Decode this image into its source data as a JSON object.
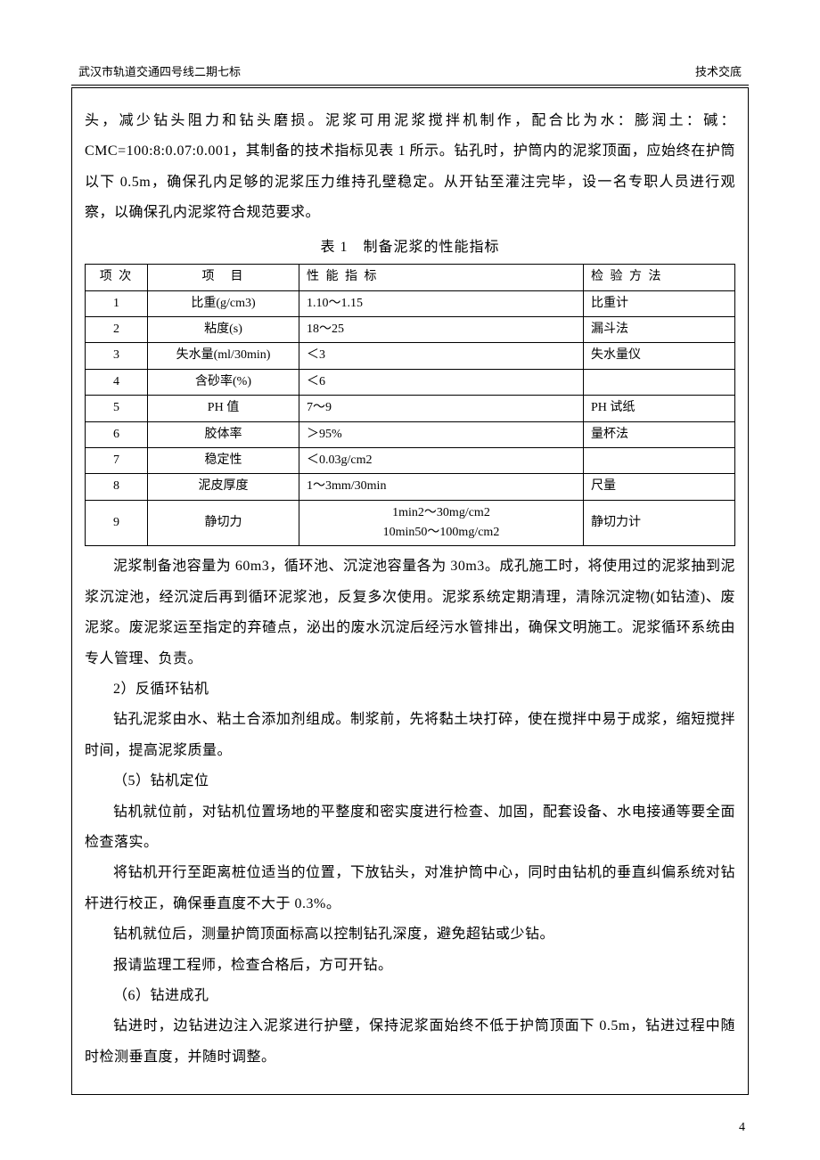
{
  "header": {
    "left": "武汉市轨道交通四号线二期七标",
    "right": "技术交底"
  },
  "intro_para": "头，减少钻头阻力和钻头磨损。泥浆可用泥浆搅拌机制作，配合比为水：膨润土：碱：CMC=100:8:0.07:0.001，其制备的技术指标见表 1 所示。钻孔时，护筒内的泥浆顶面，应始终在护筒以下 0.5m，确保孔内足够的泥浆压力维持孔壁稳定。从开钻至灌注完毕，设一名专职人员进行观察，以确保孔内泥浆符合规范要求。",
  "table_caption": "表 1　制备泥浆的性能指标",
  "table": {
    "headers": {
      "idx": "项 次",
      "item": "项　目",
      "spec": "性 能 指 标",
      "method": "检 验 方 法"
    },
    "rows": [
      {
        "idx": "1",
        "item": "比重(g/cm3)",
        "spec": "1.10～1.15",
        "method": "比重计"
      },
      {
        "idx": "2",
        "item": "粘度(s)",
        "spec": "18～25",
        "method": "漏斗法"
      },
      {
        "idx": "3",
        "item": "失水量(ml/30min)",
        "spec": "＜3",
        "method": "失水量仪"
      },
      {
        "idx": "4",
        "item": "含砂率(%)",
        "spec": "＜6",
        "method": ""
      },
      {
        "idx": "5",
        "item": "PH 值",
        "spec": "7～9",
        "method": "PH 试纸"
      },
      {
        "idx": "6",
        "item": "胶体率",
        "spec": "＞95%",
        "method": "量杯法"
      },
      {
        "idx": "7",
        "item": "稳定性",
        "spec": "＜0.03g/cm2",
        "method": ""
      },
      {
        "idx": "8",
        "item": "泥皮厚度",
        "spec": "1～3mm/30min",
        "method": "尺量"
      },
      {
        "idx": "9",
        "item": "静切力",
        "spec": "1min2～30mg/cm2\n10min50～100mg/cm2",
        "method": "静切力计"
      }
    ]
  },
  "after_table_para": "泥浆制备池容量为 60m3，循环池、沉淀池容量各为 30m3。成孔施工时，将使用过的泥浆抽到泥浆沉淀池，经沉淀后再到循环泥浆池，反复多次使用。泥浆系统定期清理，清除沉淀物(如钻渣)、废泥浆。废泥浆运至指定的弃碴点，泌出的废水沉淀后经污水管排出，确保文明施工。泥浆循环系统由专人管理、负责。",
  "sec2_title": "2）反循环钻机",
  "sec2_body": "钻孔泥浆由水、粘土合添加剂组成。制浆前，先将黏土块打碎，使在搅拌中易于成浆，缩短搅拌时间，提高泥浆质量。",
  "sec5_title": "（5）钻机定位",
  "sec5_p1": "钻机就位前，对钻机位置场地的平整度和密实度进行检查、加固，配套设备、水电接通等要全面检查落实。",
  "sec5_p2": "将钻机开行至距离桩位适当的位置，下放钻头，对准护筒中心，同时由钻机的垂直纠偏系统对钻杆进行校正，确保垂直度不大于 0.3%。",
  "sec5_p3": "钻机就位后，测量护筒顶面标高以控制钻孔深度，避免超钻或少钻。",
  "sec5_p4": "报请监理工程师，检查合格后，方可开钻。",
  "sec6_title": "（6）钻进成孔",
  "sec6_p1": "钻进时，边钻进边注入泥浆进行护壁，保持泥浆面始终不低于护筒顶面下 0.5m，钻进过程中随时检测垂直度，并随时调整。",
  "page_number": "4",
  "colors": {
    "text": "#000000",
    "background": "#ffffff",
    "border": "#000000"
  }
}
